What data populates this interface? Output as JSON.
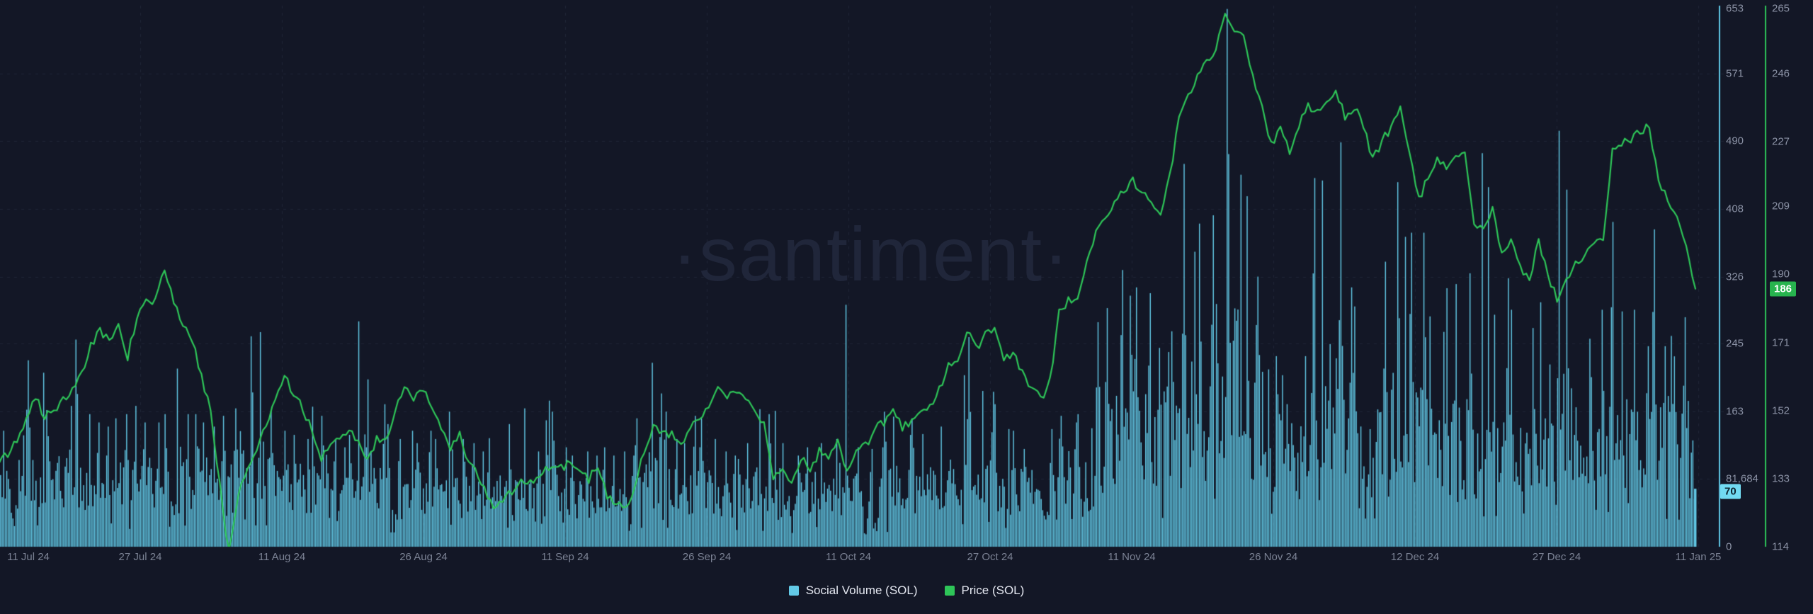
{
  "watermark": "·santiment·",
  "legend": [
    {
      "label": "Social Volume (SOL)",
      "color": "#62c9e6"
    },
    {
      "label": "Price (SOL)",
      "color": "#2ec558"
    }
  ],
  "colors": {
    "background": "#131726",
    "bar": "#62c9e6",
    "price_line": "#2ec558",
    "grid": "rgba(150,162,192,0.11)",
    "sv_axis_line": "#5fc9e7",
    "price_axis_line": "#2ec558",
    "tick_text": "#8b92a5",
    "date_text": "#7b8294",
    "watermark_text": "#20263a",
    "sv_badge_bg": "#72dbf2",
    "sv_badge_text": "#0d2530",
    "price_badge_bg": "#27b44e",
    "price_badge_text": "#ffffff"
  },
  "axes": {
    "x": {
      "labels": [
        "11 Jul 24",
        "27 Jul 24",
        "11 Aug 24",
        "26 Aug 24",
        "11 Sep 24",
        "26 Sep 24",
        "11 Oct 24",
        "27 Oct 24",
        "11 Nov 24",
        "26 Nov 24",
        "12 Dec 24",
        "27 Dec 24",
        "11 Jan 25"
      ]
    },
    "social_volume": {
      "title": "Social Volume (SOL)",
      "ticks": [
        "653",
        "571",
        "490",
        "408",
        "326",
        "245",
        "163",
        "81,684",
        "0"
      ],
      "tick_values": [
        653,
        571,
        490,
        408,
        326,
        245,
        163,
        81.684,
        0
      ],
      "min": 0,
      "max": 653,
      "current": 70,
      "current_label": "70"
    },
    "price": {
      "title": "Price (SOL)",
      "ticks": [
        "265",
        "246",
        "227",
        "209",
        "190",
        "171",
        "152",
        "133",
        "114"
      ],
      "tick_values": [
        265,
        246,
        227,
        209,
        190,
        171,
        152,
        133,
        114
      ],
      "min": 114,
      "max": 265,
      "current": 186,
      "current_label": "186"
    }
  },
  "chart_data": {
    "type": "bar+line",
    "title": "",
    "x_range": [
      "11 Jul 24",
      "11 Jan 25"
    ],
    "x_tick_labels": [
      "11 Jul 24",
      "27 Jul 24",
      "11 Aug 24",
      "26 Aug 24",
      "11 Sep 24",
      "26 Sep 24",
      "11 Oct 24",
      "27 Oct 24",
      "11 Nov 24",
      "26 Nov 24",
      "12 Dec 24",
      "27 Dec 24",
      "11 Jan 25"
    ],
    "legend_position": "bottom-center",
    "grid": "dashed",
    "series": [
      {
        "name": "Social Volume (SOL)",
        "type": "bar",
        "axis_range": [
          0,
          653
        ],
        "current_value": 70,
        "daily_base_peak": [
          [
            75,
            140
          ],
          [
            70,
            155
          ],
          [
            80,
            190
          ],
          [
            90,
            225
          ],
          [
            85,
            210
          ],
          [
            75,
            165
          ],
          [
            70,
            150
          ],
          [
            75,
            170
          ],
          [
            85,
            250
          ],
          [
            75,
            160
          ],
          [
            70,
            150
          ],
          [
            70,
            145
          ],
          [
            75,
            155
          ],
          [
            75,
            160
          ],
          [
            80,
            170
          ],
          [
            70,
            150
          ],
          [
            80,
            165
          ],
          [
            75,
            150
          ],
          [
            80,
            160
          ],
          [
            85,
            215
          ],
          [
            80,
            160
          ],
          [
            85,
            160
          ],
          [
            75,
            150
          ],
          [
            70,
            145
          ],
          [
            85,
            158
          ],
          [
            90,
            167
          ],
          [
            85,
            185
          ],
          [
            95,
            254
          ],
          [
            100,
            259
          ],
          [
            85,
            165
          ],
          [
            80,
            150
          ],
          [
            75,
            140
          ],
          [
            70,
            135
          ],
          [
            70,
            130
          ],
          [
            85,
            169
          ],
          [
            80,
            158
          ],
          [
            70,
            130
          ],
          [
            65,
            120
          ],
          [
            70,
            135
          ],
          [
            95,
            272
          ],
          [
            85,
            202
          ],
          [
            75,
            172
          ],
          [
            70,
            148
          ],
          [
            65,
            130
          ],
          [
            70,
            140
          ],
          [
            65,
            125
          ],
          [
            70,
            140
          ],
          [
            65,
            130
          ],
          [
            70,
            163
          ],
          [
            70,
            160
          ],
          [
            60,
            130
          ],
          [
            60,
            125
          ],
          [
            55,
            115
          ],
          [
            60,
            131
          ],
          [
            60,
            122
          ],
          [
            65,
            148
          ],
          [
            60,
            125
          ],
          [
            60,
            167
          ],
          [
            55,
            115
          ],
          [
            65,
            246
          ],
          [
            70,
            163
          ],
          [
            60,
            120
          ],
          [
            55,
            110
          ],
          [
            60,
            115
          ],
          [
            55,
            110
          ],
          [
            60,
            120
          ],
          [
            55,
            110
          ],
          [
            60,
            115
          ],
          [
            55,
            110
          ],
          [
            65,
            155
          ],
          [
            90,
            222
          ],
          [
            80,
            185
          ],
          [
            70,
            163
          ],
          [
            65,
            130
          ],
          [
            65,
            125
          ],
          [
            70,
            158
          ],
          [
            70,
            155
          ],
          [
            65,
            130
          ],
          [
            60,
            115
          ],
          [
            60,
            110
          ],
          [
            55,
            106
          ],
          [
            60,
            125
          ],
          [
            70,
            166
          ],
          [
            65,
            160
          ],
          [
            70,
            164
          ],
          [
            60,
            125
          ],
          [
            55,
            110
          ],
          [
            60,
            120
          ],
          [
            55,
            115
          ],
          [
            60,
            125
          ],
          [
            60,
            130
          ],
          [
            70,
            292
          ],
          [
            65,
            158
          ],
          [
            60,
            120
          ],
          [
            55,
            118
          ],
          [
            60,
            120
          ],
          [
            65,
            163
          ],
          [
            70,
            157
          ],
          [
            65,
            135
          ],
          [
            70,
            155
          ],
          [
            65,
            136
          ],
          [
            60,
            125
          ],
          [
            70,
            145
          ],
          [
            75,
            170
          ],
          [
            80,
            207
          ],
          [
            95,
            253
          ],
          [
            85,
            188
          ],
          [
            80,
            187
          ],
          [
            75,
            172
          ],
          [
            70,
            142
          ],
          [
            70,
            140
          ],
          [
            65,
            118
          ],
          [
            60,
            115
          ],
          [
            65,
            128
          ],
          [
            75,
            142
          ],
          [
            85,
            158
          ],
          [
            80,
            150
          ],
          [
            75,
            160
          ],
          [
            70,
            143
          ],
          [
            110,
            271
          ],
          [
            120,
            288
          ],
          [
            130,
            334
          ],
          [
            140,
            303
          ],
          [
            140,
            313
          ],
          [
            150,
            306
          ],
          [
            130,
            240
          ],
          [
            130,
            235
          ],
          [
            140,
            260
          ],
          [
            150,
            462
          ],
          [
            160,
            356
          ],
          [
            165,
            390
          ],
          [
            170,
            400
          ],
          [
            150,
            293
          ],
          [
            220,
            649
          ],
          [
            200,
            449
          ],
          [
            190,
            423
          ],
          [
            170,
            326
          ],
          [
            150,
            264
          ],
          [
            130,
            230
          ],
          [
            120,
            207
          ],
          [
            120,
            203
          ],
          [
            130,
            230
          ],
          [
            150,
            445
          ],
          [
            150,
            442
          ],
          [
            160,
            392
          ],
          [
            170,
            488
          ],
          [
            150,
            313
          ],
          [
            140,
            290
          ],
          [
            110,
            194
          ],
          [
            120,
            361
          ],
          [
            130,
            344
          ],
          [
            150,
            440
          ],
          [
            140,
            374
          ],
          [
            140,
            379
          ],
          [
            140,
            379
          ],
          [
            120,
            278
          ],
          [
            130,
            330
          ],
          [
            130,
            312
          ],
          [
            130,
            317
          ],
          [
            140,
            330
          ],
          [
            150,
            475
          ],
          [
            130,
            434
          ],
          [
            130,
            280
          ],
          [
            130,
            324
          ],
          [
            120,
            286
          ],
          [
            120,
            277
          ],
          [
            110,
            264
          ],
          [
            120,
            295
          ],
          [
            110,
            220
          ],
          [
            160,
            502
          ],
          [
            150,
            431
          ],
          [
            140,
            374
          ],
          [
            130,
            251
          ],
          [
            120,
            286
          ],
          [
            130,
            289
          ],
          [
            150,
            392
          ],
          [
            130,
            284
          ],
          [
            120,
            286
          ],
          [
            120,
            242
          ],
          [
            140,
            383
          ],
          [
            120,
            242
          ],
          [
            140,
            383
          ],
          [
            120,
            277
          ],
          [
            100,
            176
          ],
          [
            60,
            70
          ]
        ]
      },
      {
        "name": "Price (SOL)",
        "type": "line",
        "axis_range": [
          114,
          265
        ],
        "current_value": 186,
        "daily_values": [
          137,
          140,
          144,
          150,
          156,
          150,
          152,
          155,
          158,
          162,
          170,
          174,
          171,
          177,
          167,
          178,
          182,
          183,
          191,
          183,
          176,
          172,
          161,
          153,
          131,
          112,
          128,
          137,
          140,
          148,
          155,
          161,
          157,
          152,
          147,
          139,
          143,
          144,
          146,
          143,
          138,
          144,
          143,
          151,
          159,
          155,
          158,
          152,
          148,
          142,
          145,
          137,
          134,
          128,
          124,
          128,
          130,
          133,
          132,
          135,
          137,
          136,
          138,
          135,
          133,
          137,
          128,
          126,
          124,
          130,
          141,
          148,
          145,
          146,
          143,
          147,
          150,
          152,
          158,
          156,
          157,
          155,
          152,
          148,
          133,
          136,
          132,
          139,
          135,
          141,
          138,
          143,
          135,
          141,
          142,
          147,
          149,
          152,
          147,
          149,
          152,
          153,
          158,
          165,
          166,
          175,
          169,
          173,
          174,
          166,
          168,
          162,
          159,
          155,
          160,
          179,
          183,
          182,
          194,
          202,
          206,
          210,
          213,
          216,
          213,
          210,
          207,
          217,
          234,
          240,
          245,
          249,
          252,
          263,
          258,
          257,
          245,
          238,
          226,
          230,
          224,
          232,
          237,
          236,
          237,
          241,
          234,
          237,
          231,
          222,
          227,
          231,
          236,
          224,
          211,
          217,
          222,
          220,
          223,
          225,
          205,
          202,
          208,
          196,
          200,
          192,
          189,
          199,
          190,
          183,
          188,
          193,
          195,
          199,
          200,
          224,
          227,
          228,
          230,
          232,
          215,
          211,
          207,
          197,
          186
        ]
      }
    ]
  }
}
